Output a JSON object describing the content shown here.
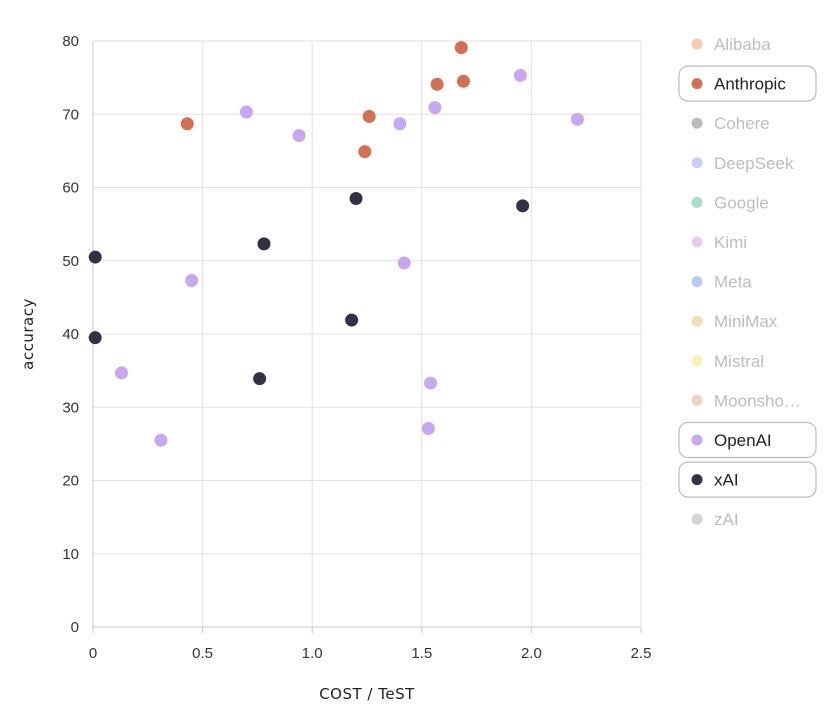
{
  "chart_data": {
    "type": "scatter",
    "xlabel": "COST / TeST",
    "ylabel": "accuracy",
    "xlim": [
      0,
      2.5
    ],
    "ylim": [
      0,
      80
    ],
    "x_ticks": [
      "0",
      "0.5",
      "1.0",
      "1.5",
      "2.0",
      "2.5"
    ],
    "y_ticks": [
      "0",
      "10",
      "20",
      "30",
      "40",
      "50",
      "60",
      "70",
      "80"
    ],
    "grid": true,
    "legend_position": "right",
    "series": [
      {
        "name": "Alibaba",
        "color": "#f7cba9",
        "active": false,
        "points": []
      },
      {
        "name": "Anthropic",
        "color": "#d4704f",
        "active": true,
        "points": [
          [
            0.43,
            68.7
          ],
          [
            1.24,
            64.9
          ],
          [
            1.26,
            69.7
          ],
          [
            1.57,
            74.1
          ],
          [
            1.69,
            74.5
          ],
          [
            1.68,
            79.1
          ]
        ]
      },
      {
        "name": "Cohere",
        "color": "#bcbcbc",
        "active": false,
        "points": []
      },
      {
        "name": "DeepSeek",
        "color": "#c9d0f5",
        "active": false,
        "points": []
      },
      {
        "name": "Google",
        "color": "#a8ddc9",
        "active": false,
        "points": []
      },
      {
        "name": "Kimi",
        "color": "#e6cbef",
        "active": false,
        "points": []
      },
      {
        "name": "Meta",
        "color": "#b3cdf1",
        "active": false,
        "points": []
      },
      {
        "name": "MiniMax",
        "color": "#f5dfb3",
        "active": false,
        "points": []
      },
      {
        "name": "Mistral",
        "color": "#f9f0b3",
        "active": false,
        "points": []
      },
      {
        "name": "Moonsho…",
        "color": "#f0d3bb",
        "active": false,
        "points": []
      },
      {
        "name": "OpenAI",
        "color": "#c5a7f2",
        "active": true,
        "points": [
          [
            0.13,
            34.7
          ],
          [
            0.31,
            25.5
          ],
          [
            0.45,
            47.3
          ],
          [
            0.7,
            70.3
          ],
          [
            0.94,
            67.1
          ],
          [
            1.4,
            68.7
          ],
          [
            1.42,
            49.7
          ],
          [
            1.53,
            27.1
          ],
          [
            1.54,
            33.3
          ],
          [
            1.56,
            70.9
          ],
          [
            1.95,
            75.3
          ],
          [
            2.21,
            69.3
          ]
        ]
      },
      {
        "name": "xAI",
        "color": "#343048",
        "active": true,
        "points": [
          [
            0.01,
            50.5
          ],
          [
            0.01,
            39.5
          ],
          [
            0.76,
            33.9
          ],
          [
            0.78,
            52.3
          ],
          [
            1.18,
            41.9
          ],
          [
            1.2,
            58.5
          ],
          [
            1.96,
            57.5
          ]
        ]
      },
      {
        "name": "zAI",
        "color": "#d4d4d4",
        "active": false,
        "points": []
      }
    ]
  }
}
